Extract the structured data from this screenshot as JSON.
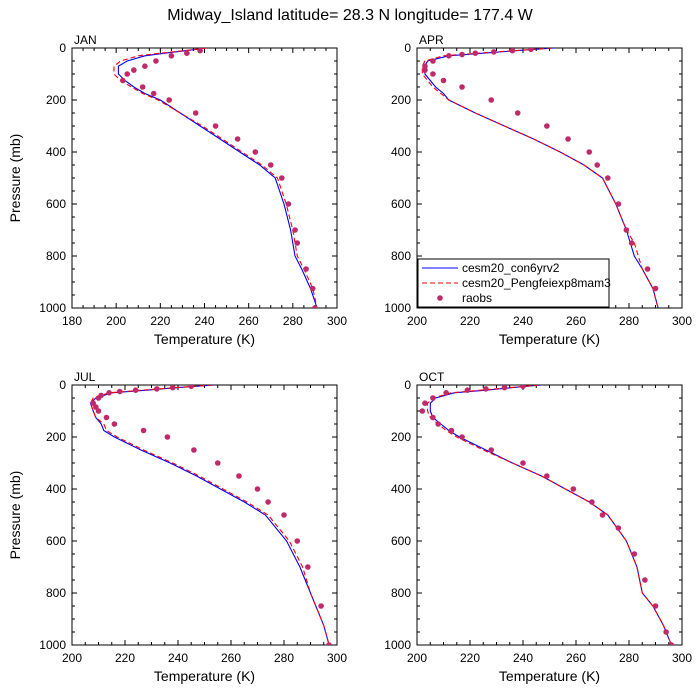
{
  "figure_title": "Midway_Island  latitude= 28.3 N longitude= 177.4 W",
  "legend_labels": [
    "cesm20_con6yrv2",
    "cesm20_Pengfeiexp8mam3",
    "raobs"
  ],
  "colors": {
    "model1": "#0000ff",
    "model2": "#ff0000",
    "obs": "#c02a6a",
    "axes": "#000000"
  },
  "chart_data": [
    {
      "type": "line",
      "title": "JAN",
      "xlabel": "Temperature (K)",
      "ylabel": "Pressure (mb)",
      "xlim": [
        180,
        300
      ],
      "ylim": [
        1000,
        0
      ],
      "xticks": [
        180,
        200,
        220,
        240,
        260,
        280,
        300
      ],
      "yticks": [
        0,
        200,
        400,
        600,
        800,
        1000
      ],
      "series": [
        {
          "name": "cesm20_con6yrv2",
          "style": "solid",
          "x": [
            241,
            232,
            222,
            213,
            205,
            201,
            201,
            204,
            208,
            213,
            220,
            229,
            238,
            247,
            256,
            265,
            272,
            276,
            279,
            281,
            284,
            288,
            291
          ],
          "y": [
            0,
            10,
            20,
            30,
            50,
            70,
            100,
            125,
            150,
            175,
            200,
            250,
            300,
            350,
            400,
            450,
            500,
            600,
            700,
            800,
            850,
            925,
            1000
          ]
        },
        {
          "name": "cesm20_Pengfeiexp8mam3",
          "style": "dashed",
          "x": [
            241,
            231,
            220,
            210,
            202,
            199,
            199,
            202,
            207,
            212,
            219,
            229,
            239,
            248,
            257,
            266,
            273,
            277,
            280,
            282,
            285,
            289,
            291
          ],
          "y": [
            0,
            10,
            20,
            30,
            50,
            70,
            100,
            125,
            150,
            175,
            200,
            250,
            300,
            350,
            400,
            450,
            500,
            600,
            700,
            800,
            850,
            925,
            1000
          ]
        },
        {
          "name": "raobs",
          "style": "markers",
          "x": [
            238,
            232,
            225,
            218,
            213,
            208,
            205,
            203,
            212,
            217,
            224,
            236,
            245,
            255,
            263,
            270,
            275,
            278,
            281,
            282,
            286,
            289,
            290
          ],
          "y": [
            10,
            20,
            30,
            50,
            70,
            85,
            100,
            125,
            150,
            175,
            200,
            250,
            300,
            350,
            400,
            450,
            500,
            600,
            700,
            750,
            850,
            925,
            1000
          ]
        }
      ]
    },
    {
      "type": "line",
      "title": "APR",
      "xlabel": "Temperature (K)",
      "ylabel": "",
      "xlim": [
        200,
        300
      ],
      "ylim": [
        1000,
        0
      ],
      "xticks": [
        200,
        220,
        240,
        260,
        280,
        300
      ],
      "yticks": [
        0,
        200,
        400,
        600,
        800,
        1000
      ],
      "legend": "inside-lower-left",
      "series": [
        {
          "name": "cesm20_con6yrv2",
          "style": "solid",
          "x": [
            252,
            238,
            225,
            212,
            204,
            203,
            203,
            205,
            207,
            210,
            212,
            222,
            233,
            244,
            254,
            263,
            270,
            275,
            279,
            282,
            285,
            289,
            291
          ],
          "y": [
            0,
            10,
            20,
            30,
            50,
            70,
            100,
            125,
            150,
            175,
            200,
            250,
            300,
            350,
            400,
            450,
            500,
            600,
            700,
            800,
            850,
            925,
            1000
          ]
        },
        {
          "name": "cesm20_Pengfeiexp8mam3",
          "style": "dashed",
          "x": [
            251,
            237,
            223,
            210,
            203,
            202,
            202,
            204,
            206,
            209,
            212,
            222,
            233,
            244,
            254,
            263,
            270,
            275,
            279,
            282,
            285,
            289,
            291
          ],
          "y": [
            0,
            10,
            20,
            30,
            50,
            70,
            100,
            125,
            150,
            175,
            200,
            250,
            300,
            350,
            400,
            450,
            500,
            600,
            700,
            750,
            850,
            925,
            1000
          ]
        },
        {
          "name": "raobs",
          "style": "markers",
          "x": [
            243,
            236,
            229,
            222,
            217,
            212,
            206,
            203,
            203,
            206,
            210,
            217,
            228,
            238,
            249,
            257,
            265,
            268,
            272,
            276,
            279,
            281,
            287,
            290
          ],
          "y": [
            5,
            10,
            15,
            20,
            25,
            30,
            50,
            70,
            85,
            100,
            125,
            150,
            200,
            250,
            300,
            350,
            400,
            450,
            500,
            600,
            700,
            750,
            850,
            925
          ]
        }
      ]
    },
    {
      "type": "line",
      "title": "JUL",
      "xlabel": "Temperature (K)",
      "ylabel": "Pressure (mb)",
      "xlim": [
        200,
        300
      ],
      "ylim": [
        1000,
        0
      ],
      "xticks": [
        200,
        220,
        240,
        260,
        280,
        300
      ],
      "yticks": [
        0,
        200,
        400,
        600,
        800,
        1000
      ],
      "series": [
        {
          "name": "cesm20_con6yrv2",
          "style": "solid",
          "x": [
            254,
            240,
            228,
            215,
            209,
            207,
            208,
            209,
            211,
            212,
            216,
            226,
            237,
            247,
            256,
            265,
            273,
            281,
            286,
            290,
            292,
            295,
            297
          ],
          "y": [
            0,
            10,
            20,
            30,
            50,
            70,
            100,
            125,
            150,
            175,
            200,
            250,
            300,
            350,
            400,
            450,
            500,
            600,
            700,
            800,
            850,
            925,
            1000
          ]
        },
        {
          "name": "cesm20_Pengfeiexp8mam3",
          "style": "dashed",
          "x": [
            253,
            239,
            226,
            214,
            208,
            207,
            208,
            209,
            212,
            213,
            217,
            227,
            238,
            248,
            257,
            266,
            274,
            282,
            287,
            290,
            292,
            295,
            297
          ],
          "y": [
            0,
            10,
            20,
            30,
            50,
            70,
            100,
            125,
            150,
            175,
            200,
            250,
            300,
            350,
            400,
            450,
            500,
            600,
            700,
            800,
            850,
            925,
            1000
          ]
        },
        {
          "name": "raobs",
          "style": "markers",
          "x": [
            245,
            238,
            232,
            224,
            218,
            214,
            211,
            210,
            208,
            209,
            210,
            213,
            216,
            227,
            236,
            246,
            255,
            263,
            270,
            274,
            280,
            285,
            289,
            294,
            297
          ],
          "y": [
            5,
            10,
            15,
            20,
            25,
            30,
            40,
            50,
            70,
            85,
            100,
            125,
            150,
            175,
            200,
            250,
            300,
            350,
            400,
            450,
            500,
            600,
            700,
            850,
            1000
          ]
        }
      ]
    },
    {
      "type": "line",
      "title": "OCT",
      "xlabel": "Temperature (K)",
      "ylabel": "",
      "xlim": [
        200,
        300
      ],
      "ylim": [
        1000,
        0
      ],
      "xticks": [
        200,
        220,
        240,
        260,
        280,
        300
      ],
      "yticks": [
        0,
        200,
        400,
        600,
        800,
        1000
      ],
      "series": [
        {
          "name": "cesm20_con6yrv2",
          "style": "solid",
          "x": [
            247,
            236,
            226,
            214,
            207,
            205,
            205,
            206,
            209,
            212,
            216,
            226,
            236,
            247,
            256,
            265,
            272,
            279,
            283,
            285,
            289,
            293,
            296
          ],
          "y": [
            0,
            10,
            20,
            30,
            50,
            70,
            100,
            125,
            150,
            175,
            200,
            250,
            300,
            350,
            400,
            450,
            500,
            600,
            700,
            800,
            850,
            925,
            1000
          ]
        },
        {
          "name": "cesm20_Pengfeiexp8mam3",
          "style": "dashed",
          "x": [
            246,
            235,
            224,
            213,
            206,
            204,
            204,
            205,
            208,
            211,
            215,
            225,
            236,
            247,
            256,
            265,
            272,
            279,
            283,
            285,
            289,
            293,
            296
          ],
          "y": [
            0,
            10,
            20,
            30,
            50,
            70,
            100,
            125,
            150,
            175,
            200,
            250,
            300,
            350,
            400,
            450,
            500,
            600,
            700,
            800,
            850,
            925,
            1000
          ]
        },
        {
          "name": "raobs",
          "style": "markers",
          "x": [
            240,
            233,
            226,
            219,
            211,
            206,
            203,
            202,
            206,
            208,
            213,
            217,
            228,
            240,
            249,
            259,
            266,
            270,
            276,
            282,
            286,
            290,
            294,
            296
          ],
          "y": [
            5,
            10,
            15,
            20,
            30,
            50,
            70,
            100,
            125,
            150,
            175,
            200,
            250,
            300,
            350,
            400,
            450,
            500,
            550,
            650,
            750,
            850,
            950,
            1000
          ]
        }
      ]
    }
  ]
}
